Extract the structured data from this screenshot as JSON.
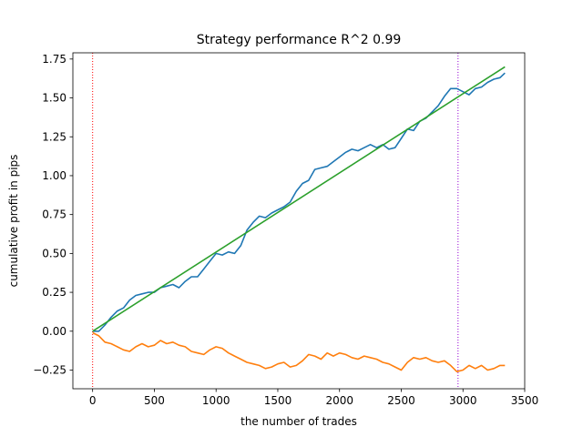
{
  "chart_data": {
    "type": "line",
    "title": "Strategy performance R^2 0.99",
    "xlabel": "the number of trades",
    "ylabel": "cumulative profit in pips",
    "xlim": [
      -160,
      3500
    ],
    "ylim": [
      -0.37,
      1.79
    ],
    "xticks": [
      0,
      500,
      1000,
      1500,
      2000,
      2500,
      3000,
      3500
    ],
    "yticks": [
      -0.25,
      0.0,
      0.25,
      0.5,
      0.75,
      1.0,
      1.25,
      1.5,
      1.75
    ],
    "ytick_labels": [
      "−0.25",
      "0.00",
      "0.25",
      "0.50",
      "0.75",
      "1.00",
      "1.25",
      "1.50",
      "1.75"
    ],
    "grid": false,
    "series": [
      {
        "color": "#1f77b4",
        "x": [
          0,
          50,
          100,
          150,
          200,
          250,
          300,
          350,
          400,
          450,
          500,
          550,
          600,
          650,
          700,
          750,
          800,
          850,
          900,
          950,
          1000,
          1050,
          1100,
          1150,
          1200,
          1250,
          1300,
          1350,
          1400,
          1450,
          1500,
          1550,
          1600,
          1650,
          1700,
          1750,
          1800,
          1850,
          1900,
          1950,
          2000,
          2050,
          2100,
          2150,
          2200,
          2250,
          2300,
          2350,
          2400,
          2450,
          2500,
          2550,
          2600,
          2650,
          2700,
          2750,
          2800,
          2850,
          2900,
          2950,
          3000,
          3050,
          3100,
          3150,
          3200,
          3250,
          3300,
          3340
        ],
        "values": [
          0.0,
          0.0,
          0.04,
          0.09,
          0.13,
          0.15,
          0.2,
          0.23,
          0.24,
          0.25,
          0.25,
          0.28,
          0.29,
          0.3,
          0.28,
          0.32,
          0.35,
          0.35,
          0.4,
          0.45,
          0.5,
          0.49,
          0.51,
          0.5,
          0.55,
          0.65,
          0.7,
          0.74,
          0.73,
          0.76,
          0.78,
          0.8,
          0.83,
          0.9,
          0.95,
          0.97,
          1.04,
          1.05,
          1.06,
          1.09,
          1.12,
          1.15,
          1.17,
          1.16,
          1.18,
          1.2,
          1.18,
          1.2,
          1.17,
          1.18,
          1.24,
          1.3,
          1.29,
          1.35,
          1.37,
          1.41,
          1.45,
          1.51,
          1.56,
          1.56,
          1.54,
          1.52,
          1.56,
          1.57,
          1.6,
          1.62,
          1.63,
          1.66
        ]
      },
      {
        "color": "#ff7f0e",
        "x": [
          0,
          50,
          100,
          150,
          200,
          250,
          300,
          350,
          400,
          450,
          500,
          550,
          600,
          650,
          700,
          750,
          800,
          850,
          900,
          950,
          1000,
          1050,
          1100,
          1150,
          1200,
          1250,
          1300,
          1350,
          1400,
          1450,
          1500,
          1550,
          1600,
          1650,
          1700,
          1750,
          1800,
          1850,
          1900,
          1950,
          2000,
          2050,
          2100,
          2150,
          2200,
          2250,
          2300,
          2350,
          2400,
          2450,
          2500,
          2550,
          2600,
          2650,
          2700,
          2750,
          2800,
          2850,
          2900,
          2950,
          3000,
          3050,
          3100,
          3150,
          3200,
          3250,
          3300,
          3340
        ],
        "values": [
          -0.01,
          -0.03,
          -0.07,
          -0.08,
          -0.1,
          -0.12,
          -0.13,
          -0.1,
          -0.08,
          -0.1,
          -0.09,
          -0.06,
          -0.08,
          -0.07,
          -0.09,
          -0.1,
          -0.13,
          -0.14,
          -0.15,
          -0.12,
          -0.1,
          -0.11,
          -0.14,
          -0.16,
          -0.18,
          -0.2,
          -0.21,
          -0.22,
          -0.24,
          -0.23,
          -0.21,
          -0.2,
          -0.23,
          -0.22,
          -0.19,
          -0.15,
          -0.16,
          -0.18,
          -0.14,
          -0.16,
          -0.14,
          -0.15,
          -0.17,
          -0.18,
          -0.16,
          -0.17,
          -0.18,
          -0.2,
          -0.21,
          -0.23,
          -0.25,
          -0.2,
          -0.17,
          -0.18,
          -0.17,
          -0.19,
          -0.2,
          -0.19,
          -0.22,
          -0.26,
          -0.25,
          -0.22,
          -0.24,
          -0.22,
          -0.25,
          -0.24,
          -0.22,
          -0.22
        ]
      },
      {
        "color": "#2ca02c",
        "x": [
          0,
          3340
        ],
        "values": [
          0.0,
          1.7
        ]
      }
    ],
    "vlines": [
      {
        "x": 0,
        "color": "#ff0000"
      },
      {
        "x": 2960,
        "color": "#9400d3"
      }
    ]
  }
}
